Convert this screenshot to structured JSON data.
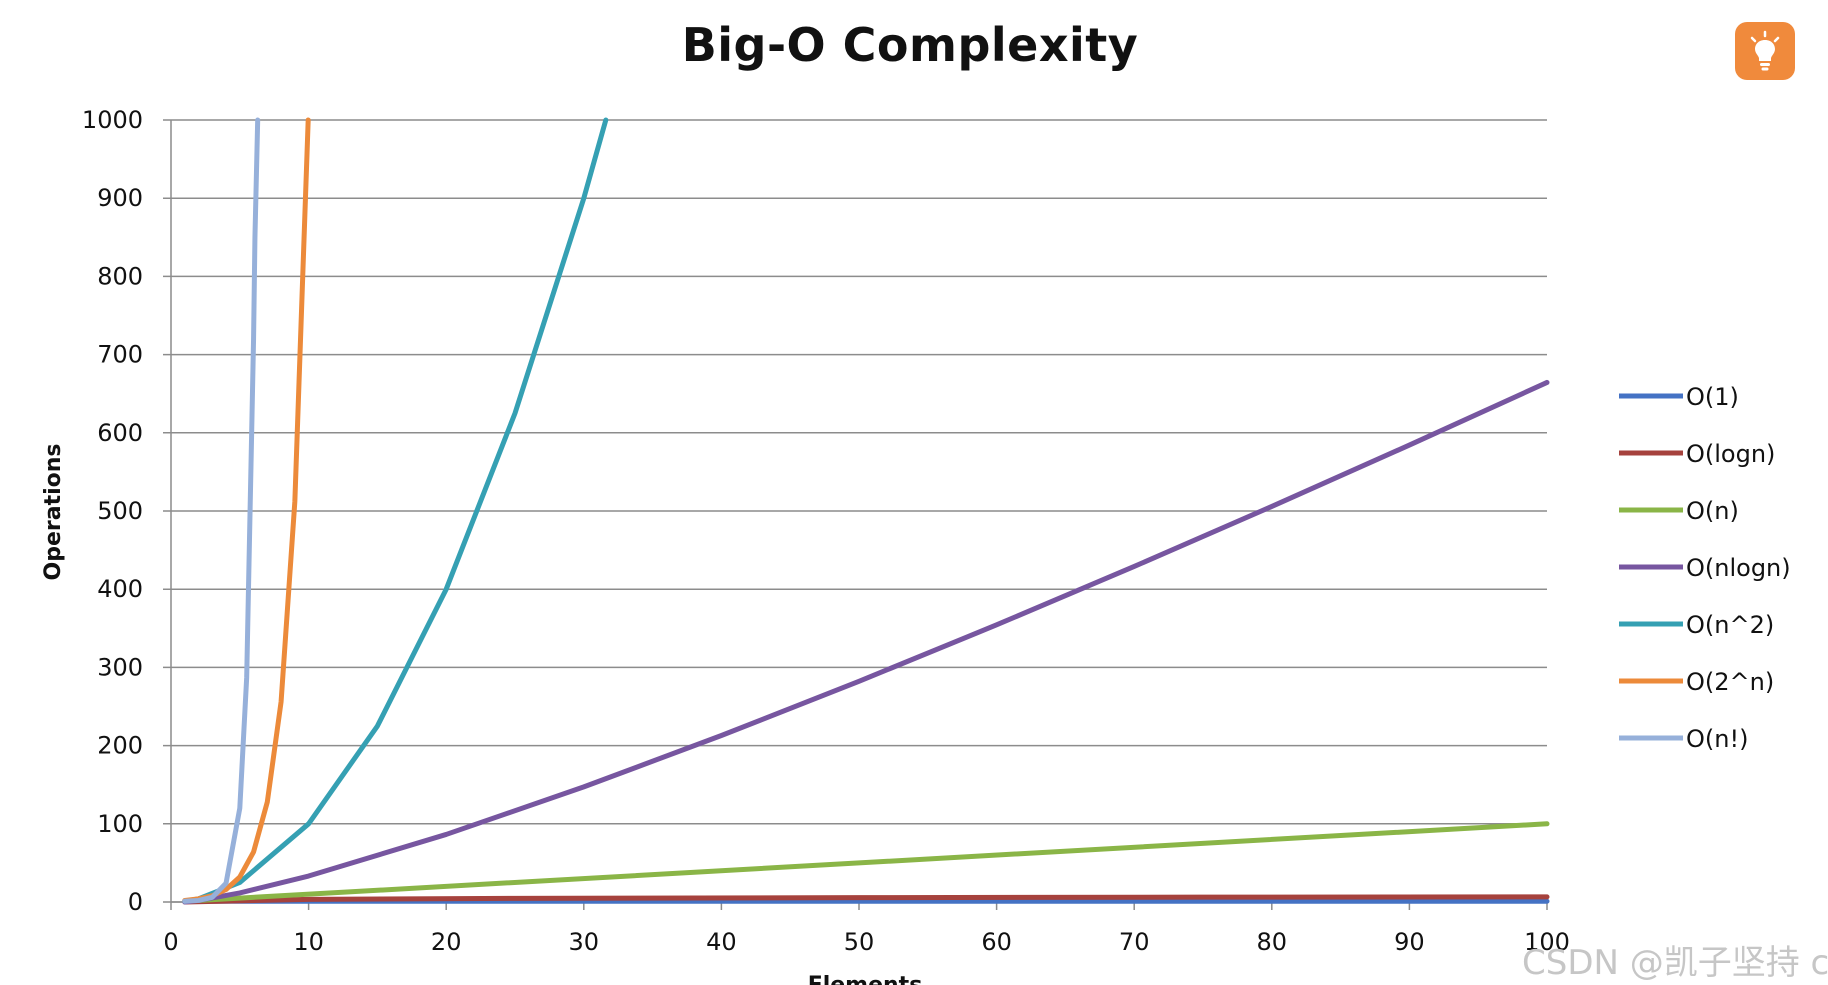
{
  "colors": {
    "grid": "#8c8c8c",
    "axis": "#8c8c8c",
    "o1": "#4472c4",
    "ologn": "#a6423d",
    "on": "#8ab547",
    "onlogn": "#7756a0",
    "on2": "#35a0b3",
    "o2n": "#ec8a3a",
    "onfact": "#96b0da",
    "bulb_bg": "#f08a3c"
  },
  "header": {
    "bulb_icon": "lightbulb-icon"
  },
  "watermark": "CSDN @凯子坚持 c",
  "chart_data": {
    "type": "line",
    "title": "Big-O Complexity",
    "xlabel": "Elements",
    "ylabel": "Operations",
    "xlim": [
      0,
      100
    ],
    "ylim": [
      0,
      1000
    ],
    "x_ticks": [
      "0",
      "10",
      "20",
      "30",
      "40",
      "50",
      "60",
      "70",
      "80",
      "90",
      "100"
    ],
    "y_ticks": [
      "0",
      "100",
      "200",
      "300",
      "400",
      "500",
      "600",
      "700",
      "800",
      "900",
      "1000"
    ],
    "grid": "horizontal",
    "legend_position": "right",
    "series": [
      {
        "name": "O(1)",
        "color_key": "o1",
        "x": [
          1,
          100
        ],
        "y": [
          1,
          1
        ]
      },
      {
        "name": "O(logn)",
        "color_key": "ologn",
        "x": [
          1,
          10,
          25,
          50,
          75,
          100
        ],
        "y": [
          0,
          3.3,
          4.6,
          5.6,
          6.2,
          6.6
        ]
      },
      {
        "name": "O(n)",
        "color_key": "on",
        "x": [
          1,
          100
        ],
        "y": [
          1,
          100
        ]
      },
      {
        "name": "O(nlogn)",
        "color_key": "onlogn",
        "x": [
          1,
          2,
          5,
          10,
          20,
          30,
          40,
          50,
          60,
          70,
          80,
          90,
          100
        ],
        "y": [
          0,
          2,
          11.6,
          33.2,
          86.4,
          147.2,
          212.9,
          282.2,
          354.4,
          429.1,
          505.8,
          584.3,
          664.4
        ]
      },
      {
        "name": "O(n^2)",
        "color_key": "on2",
        "x": [
          1,
          2,
          5,
          10,
          15,
          20,
          25,
          30,
          31.6
        ],
        "y": [
          1,
          4,
          25,
          100,
          225,
          400,
          625,
          900,
          1000
        ]
      },
      {
        "name": "O(2^n)",
        "color_key": "o2n",
        "x": [
          1,
          2,
          3,
          4,
          5,
          6,
          7,
          8,
          9,
          9.97
        ],
        "y": [
          2,
          4,
          8,
          16,
          32,
          64,
          128,
          256,
          512,
          1000
        ]
      },
      {
        "name": "O(n!)",
        "color_key": "onfact",
        "x": [
          1,
          2,
          3,
          4,
          5,
          5.5,
          6,
          6.1,
          6.3
        ],
        "y": [
          1,
          2,
          6,
          24,
          120,
          287,
          720,
          850,
          1000
        ]
      }
    ]
  }
}
